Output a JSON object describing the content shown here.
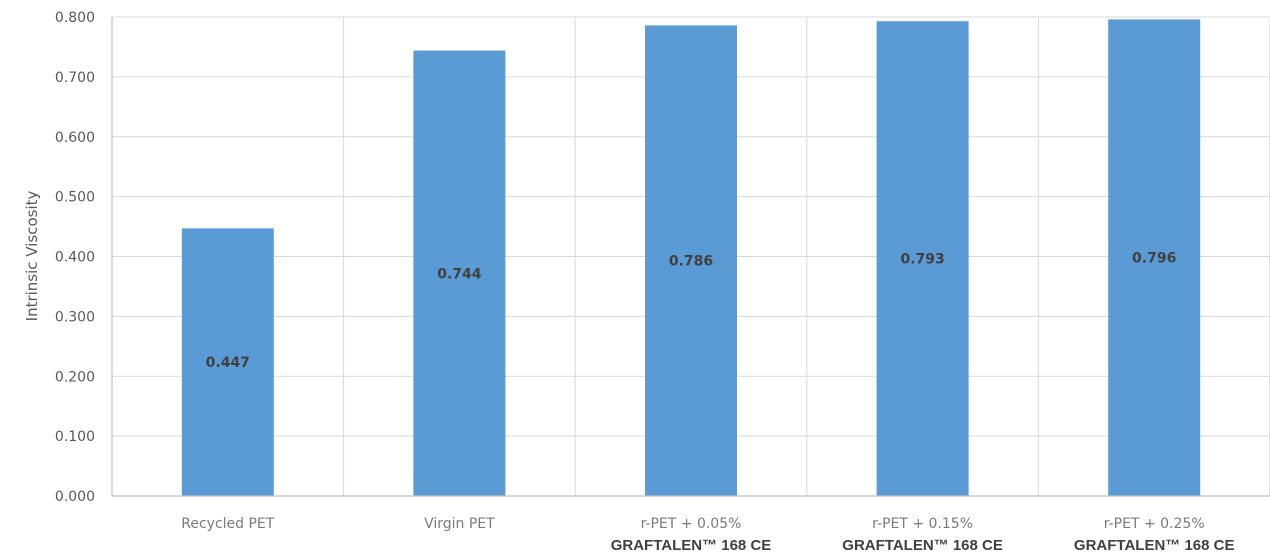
{
  "chart_data": {
    "type": "bar",
    "title": "",
    "xlabel": "",
    "ylabel": "Intrinsic Viscosity",
    "ylim": [
      0,
      0.8
    ],
    "yticks": [
      "0.000",
      "0.100",
      "0.200",
      "0.300",
      "0.400",
      "0.500",
      "0.600",
      "0.700",
      "0.800"
    ],
    "grid": true,
    "categories": [
      [
        "Recycled PET"
      ],
      [
        "Virgin PET"
      ],
      [
        "r-PET + 0.05%",
        "GRAFTALEN™ 168 CE"
      ],
      [
        "r-PET + 0.15%",
        "GRAFTALEN™ 168 CE"
      ],
      [
        "r-PET + 0.25%",
        "GRAFTALEN™ 168 CE"
      ]
    ],
    "values": [
      0.447,
      0.744,
      0.786,
      0.793,
      0.796
    ],
    "data_labels": [
      "0.447",
      "0.744",
      "0.786",
      "0.793",
      "0.796"
    ],
    "bar_color": "#5b9bd5",
    "grid_color": "#d9d9d9"
  }
}
